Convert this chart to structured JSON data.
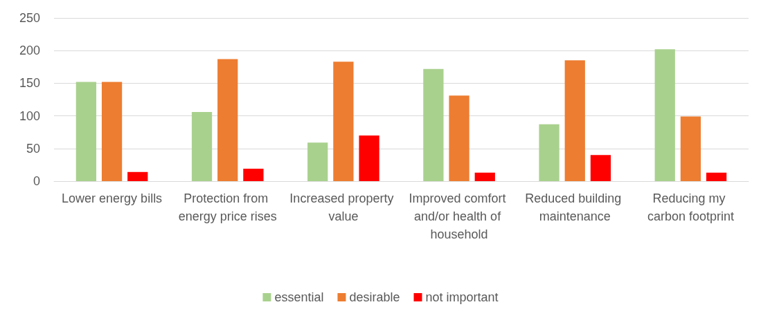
{
  "chart_data": {
    "type": "bar",
    "categories": [
      "Lower energy bills",
      "Protection from energy price rises",
      "Increased property value",
      "Improved comfort and/or health of household",
      "Reduced building maintenance",
      "Reducing my carbon footprint"
    ],
    "series": [
      {
        "name": "essential",
        "color": "#a9d18e",
        "values": [
          152,
          106,
          59,
          172,
          87,
          202
        ]
      },
      {
        "name": "desirable",
        "color": "#ed7d31",
        "values": [
          152,
          187,
          183,
          131,
          185,
          99
        ]
      },
      {
        "name": "not important",
        "color": "#ff0000",
        "values": [
          14,
          19,
          70,
          13,
          40,
          13
        ]
      }
    ],
    "ylim": [
      0,
      250
    ],
    "yticks": [
      0,
      50,
      100,
      150,
      200,
      250
    ],
    "grid": "y",
    "legend": "bottom"
  }
}
